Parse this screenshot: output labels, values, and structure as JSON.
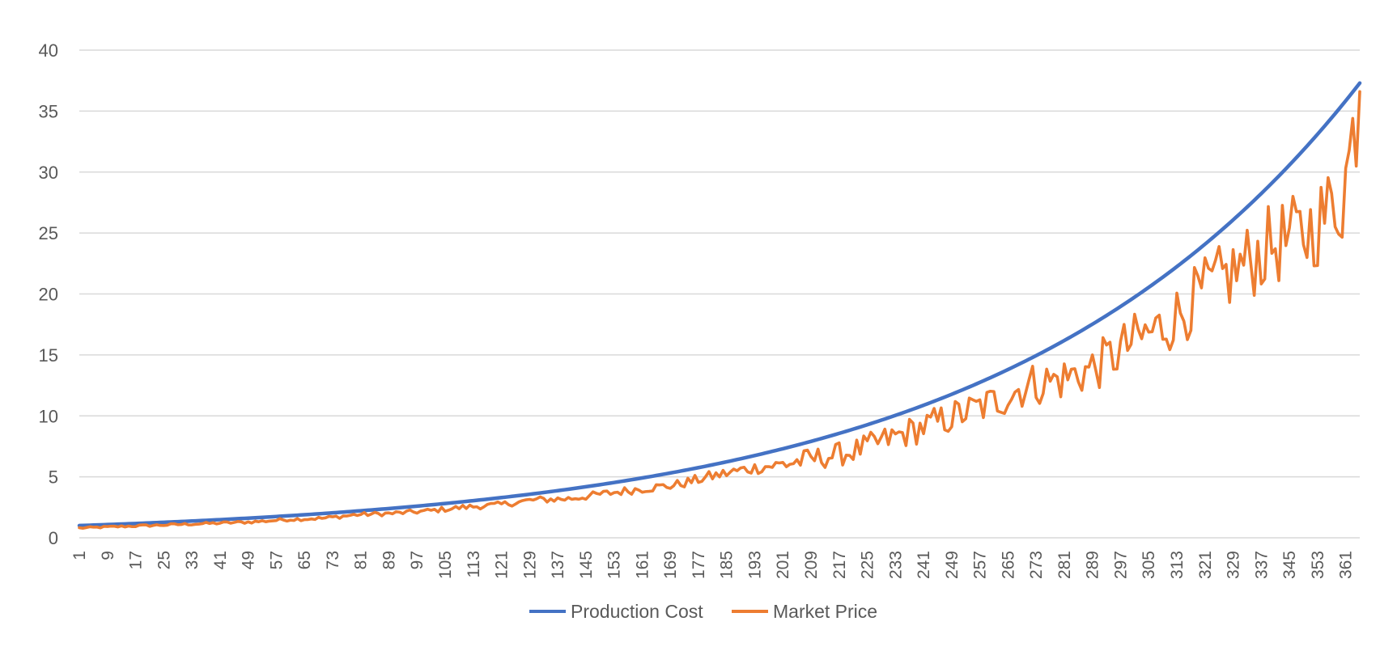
{
  "chart_data": {
    "type": "line",
    "title": "",
    "xlabel": "",
    "ylabel": "",
    "x_count": 365,
    "x_tick_start": 1,
    "x_tick_step": 8,
    "ylim": [
      0,
      40
    ],
    "y_ticks": [
      0,
      5,
      10,
      15,
      20,
      25,
      30,
      35,
      40
    ],
    "x_ticks": [
      "1",
      "9",
      "17",
      "25",
      "33",
      "41",
      "49",
      "57",
      "65",
      "73",
      "81",
      "89",
      "97",
      "105",
      "113",
      "121",
      "129",
      "137",
      "145",
      "153",
      "161",
      "169",
      "177",
      "185",
      "193",
      "201",
      "209",
      "217",
      "225",
      "233",
      "241",
      "249",
      "257",
      "265",
      "273",
      "281",
      "289",
      "297",
      "305",
      "313",
      "321",
      "329",
      "337",
      "345",
      "353",
      "361"
    ],
    "grid": "horizontal",
    "legend_position": "bottom",
    "series": [
      {
        "name": "Production Cost",
        "color": "#4472c4",
        "model": "exponential",
        "start": 1.0,
        "end": 37.3
      },
      {
        "name": "Market Price",
        "color": "#ed7d31",
        "anchors": [
          [
            1,
            0.8
          ],
          [
            10,
            0.9
          ],
          [
            20,
            1.0
          ],
          [
            30,
            1.1
          ],
          [
            40,
            1.2
          ],
          [
            50,
            1.3
          ],
          [
            60,
            1.5
          ],
          [
            70,
            1.6
          ],
          [
            80,
            1.9
          ],
          [
            90,
            2.0
          ],
          [
            100,
            2.2
          ],
          [
            110,
            2.5
          ],
          [
            120,
            2.7
          ],
          [
            130,
            3.1
          ],
          [
            140,
            3.2
          ],
          [
            150,
            3.6
          ],
          [
            160,
            4.0
          ],
          [
            170,
            4.3
          ],
          [
            180,
            5.0
          ],
          [
            190,
            5.6
          ],
          [
            200,
            6.0
          ],
          [
            210,
            6.5
          ],
          [
            220,
            7.0
          ],
          [
            230,
            8.0
          ],
          [
            240,
            9.0
          ],
          [
            250,
            10.0
          ],
          [
            260,
            11.0
          ],
          [
            270,
            12.5
          ],
          [
            280,
            13.0
          ],
          [
            290,
            14.0
          ],
          [
            300,
            16.0
          ],
          [
            310,
            17.5
          ],
          [
            320,
            20.0
          ],
          [
            330,
            22.0
          ],
          [
            340,
            24.0
          ],
          [
            350,
            25.0
          ],
          [
            360,
            28.0
          ],
          [
            365,
            36.6
          ]
        ],
        "noise": 0.09
      }
    ]
  }
}
